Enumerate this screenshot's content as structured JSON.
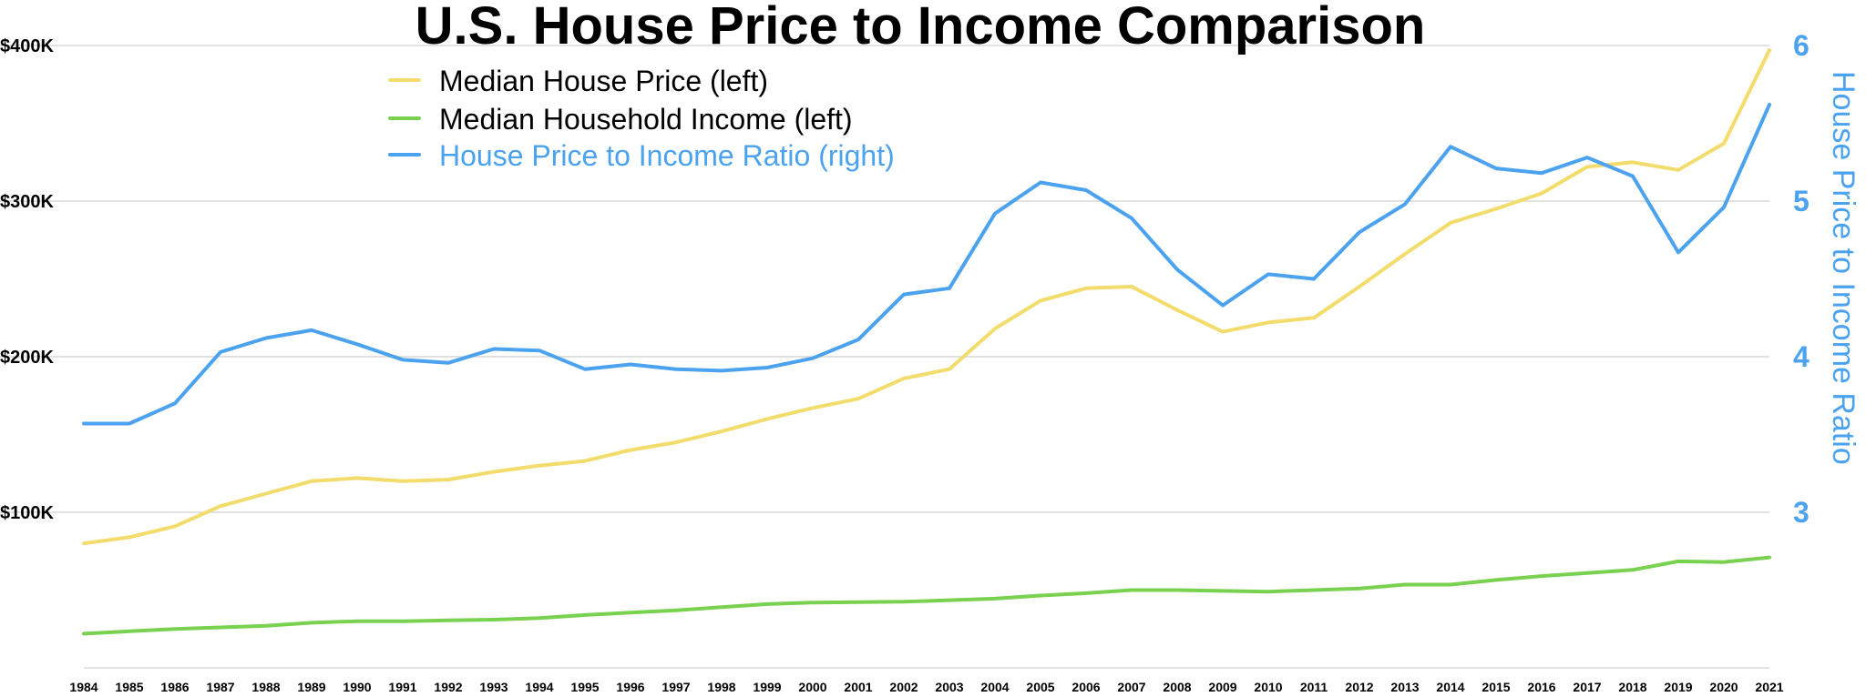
{
  "chart_data": {
    "type": "line",
    "title": "U.S. House Price to Income Comparison",
    "xlabel": "",
    "ylabel": "",
    "ylabel_right": "House Price to Income Ratio",
    "x": [
      "1984",
      "1985",
      "1986",
      "1987",
      "1988",
      "1989",
      "1990",
      "1991",
      "1992",
      "1993",
      "1994",
      "1995",
      "1996",
      "1997",
      "1998",
      "1999",
      "2000",
      "2001",
      "2002",
      "2003",
      "2004",
      "2005",
      "2006",
      "2007",
      "2008",
      "2009",
      "2010",
      "2011",
      "2012",
      "2013",
      "2014",
      "2015",
      "2016",
      "2017",
      "2018",
      "2019",
      "2020",
      "2021"
    ],
    "ylim_left": [
      0,
      400000
    ],
    "ylim_right": [
      2,
      6
    ],
    "yticks_left": [
      {
        "value": 100000,
        "label": "$100K"
      },
      {
        "value": 200000,
        "label": "$200K"
      },
      {
        "value": 300000,
        "label": "$300K"
      },
      {
        "value": 400000,
        "label": "$400K"
      }
    ],
    "yticks_right": [
      {
        "value": 3,
        "label": "3"
      },
      {
        "value": 4,
        "label": "4"
      },
      {
        "value": 5,
        "label": "5"
      },
      {
        "value": 6,
        "label": "6"
      }
    ],
    "grid": true,
    "legend_position": "top-left",
    "series": [
      {
        "name": "Median House Price (left)",
        "axis": "left",
        "color": "#f2dc6b",
        "values": [
          80000,
          84000,
          91000,
          104000,
          112000,
          120000,
          122000,
          120000,
          121000,
          126000,
          130000,
          133000,
          140000,
          145000,
          152000,
          160000,
          167000,
          173000,
          186000,
          192000,
          218000,
          236000,
          244000,
          245000,
          230000,
          216000,
          222000,
          225000,
          245000,
          266000,
          286000,
          295000,
          305000,
          322000,
          325000,
          320000,
          337000,
          397000
        ]
      },
      {
        "name": "Median Household Income (left)",
        "axis": "left",
        "color": "#79d24f",
        "values": [
          22000,
          23500,
          25000,
          26000,
          27000,
          29000,
          30000,
          30000,
          30500,
          31000,
          32000,
          34000,
          35500,
          37000,
          39000,
          41000,
          42000,
          42300,
          42500,
          43500,
          44500,
          46500,
          48000,
          50000,
          50000,
          49500,
          49000,
          50000,
          51000,
          53500,
          53500,
          56500,
          59000,
          61000,
          63000,
          68500,
          68000,
          71000
        ]
      },
      {
        "name": "House Price to Income Ratio (right)",
        "axis": "right",
        "color": "#4ba2ee",
        "values": [
          3.57,
          3.57,
          3.7,
          4.03,
          4.12,
          4.17,
          4.08,
          3.98,
          3.96,
          4.05,
          4.04,
          3.92,
          3.95,
          3.92,
          3.91,
          3.93,
          3.99,
          4.11,
          4.4,
          4.44,
          4.92,
          5.12,
          5.07,
          4.89,
          4.56,
          4.33,
          4.53,
          4.5,
          4.8,
          4.98,
          5.35,
          5.21,
          5.18,
          5.28,
          5.16,
          4.67,
          4.96,
          5.62
        ]
      }
    ]
  }
}
